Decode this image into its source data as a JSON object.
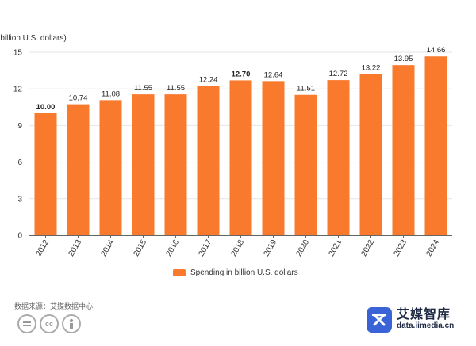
{
  "chart_data": {
    "type": "bar",
    "ylabel": "(billion U.S. dollars)",
    "categories": [
      "2012",
      "2013",
      "2014",
      "2015",
      "2016",
      "2017",
      "2018",
      "2019",
      "2020",
      "2021",
      "2022",
      "2023",
      "2024"
    ],
    "values": [
      10.0,
      10.74,
      11.08,
      11.55,
      11.55,
      12.24,
      12.7,
      12.64,
      11.51,
      12.72,
      13.22,
      13.95,
      14.66
    ],
    "value_labels": [
      "10.00",
      "10.74",
      "11.08",
      "11.55",
      "11.55",
      "12.24",
      "12.70",
      "12.64",
      "11.51",
      "12.72",
      "13.22",
      "13.95",
      "14.66"
    ],
    "bold_labels": [
      0,
      6
    ],
    "ylim": [
      0,
      15
    ],
    "yticks": [
      0,
      3,
      6,
      9,
      12,
      15
    ],
    "grid": true,
    "series": [
      {
        "name": "Spending in billion U.S. dollars",
        "color": "#f97a2d"
      }
    ],
    "legend_placement": "bottom-center"
  },
  "source_text": "数据来源：艾媒数据中心",
  "cc_icons": [
    "cc-equals-icon",
    "cc-icon",
    "cc-person-icon"
  ],
  "brand": {
    "name": "艾媒智库",
    "url": "data.iimedia.cn",
    "logo_icon": "iimedia-logo-icon",
    "color": "#3b63d8"
  }
}
